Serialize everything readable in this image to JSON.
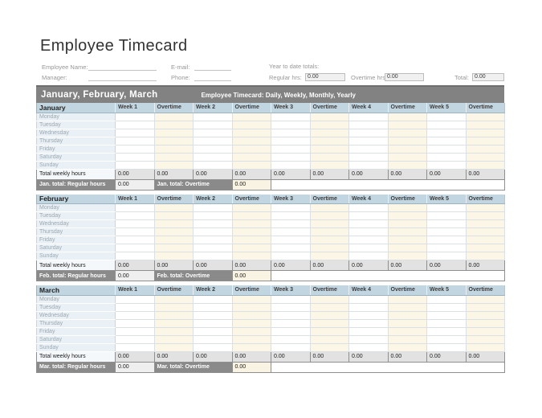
{
  "title": "Employee Timecard",
  "fields": {
    "employee_name_label": "Employee Name:",
    "manager_label": "Manager:",
    "email_label": "E-mail:",
    "phone_label": "Phone:",
    "ytd_label": "Year to date totals:",
    "regular_hrs_label": "Regular hrs:",
    "regular_hrs_value": "0.00",
    "overtime_hrs_label": "Overtime hrs:",
    "overtime_hrs_value": "0.00",
    "total_label": "Total:",
    "total_value": "0.00"
  },
  "banner": {
    "quarter": "January, February, March",
    "subtitle": "Employee Timecard: Daily, Weekly, Monthly, Yearly"
  },
  "table": {
    "columns": [
      "Week 1",
      "Overtime",
      "Week 2",
      "Overtime",
      "Week 3",
      "Overtime",
      "Week 4",
      "Overtime",
      "Week 5",
      "Overtime"
    ],
    "days": [
      "Monday",
      "Tuesday",
      "Wednesday",
      "Thursday",
      "Friday",
      "Saturday",
      "Sunday"
    ],
    "total_row_label": "Total weekly hours"
  },
  "months": [
    {
      "name": "January",
      "weekly_totals": [
        "0.00",
        "0.00",
        "0.00",
        "0.00",
        "0.00",
        "0.00",
        "0.00",
        "0.00",
        "0.00",
        "0.00"
      ],
      "total_regular_label": "Jan. total: Regular hours",
      "total_regular_value": "0.00",
      "total_overtime_label": "Jan. total: Overtime",
      "total_overtime_value": "0.00"
    },
    {
      "name": "February",
      "weekly_totals": [
        "0.00",
        "0.00",
        "0.00",
        "0.00",
        "0.00",
        "0.00",
        "0.00",
        "0.00",
        "0.00",
        "0.00"
      ],
      "total_regular_label": "Feb. total: Regular hours",
      "total_regular_value": "0.00",
      "total_overtime_label": "Feb. total: Overtime",
      "total_overtime_value": "0.00"
    },
    {
      "name": "March",
      "weekly_totals": [
        "0.00",
        "0.00",
        "0.00",
        "0.00",
        "0.00",
        "0.00",
        "0.00",
        "0.00",
        "0.00",
        "0.00"
      ],
      "total_regular_label": "Mar. total: Regular hours",
      "total_regular_value": "0.00",
      "total_overtime_label": "Mar. total: Overtime",
      "total_overtime_value": "0.00"
    }
  ],
  "colors": {
    "banner_gray": "#828282",
    "header_blue": "#c2d6e2",
    "day_label_blue": "#eaf1f6",
    "overtime_cream": "#fbf6e6",
    "total_cell_gray": "#e2e2e2",
    "month_total_gray": "#8a8a8a"
  }
}
